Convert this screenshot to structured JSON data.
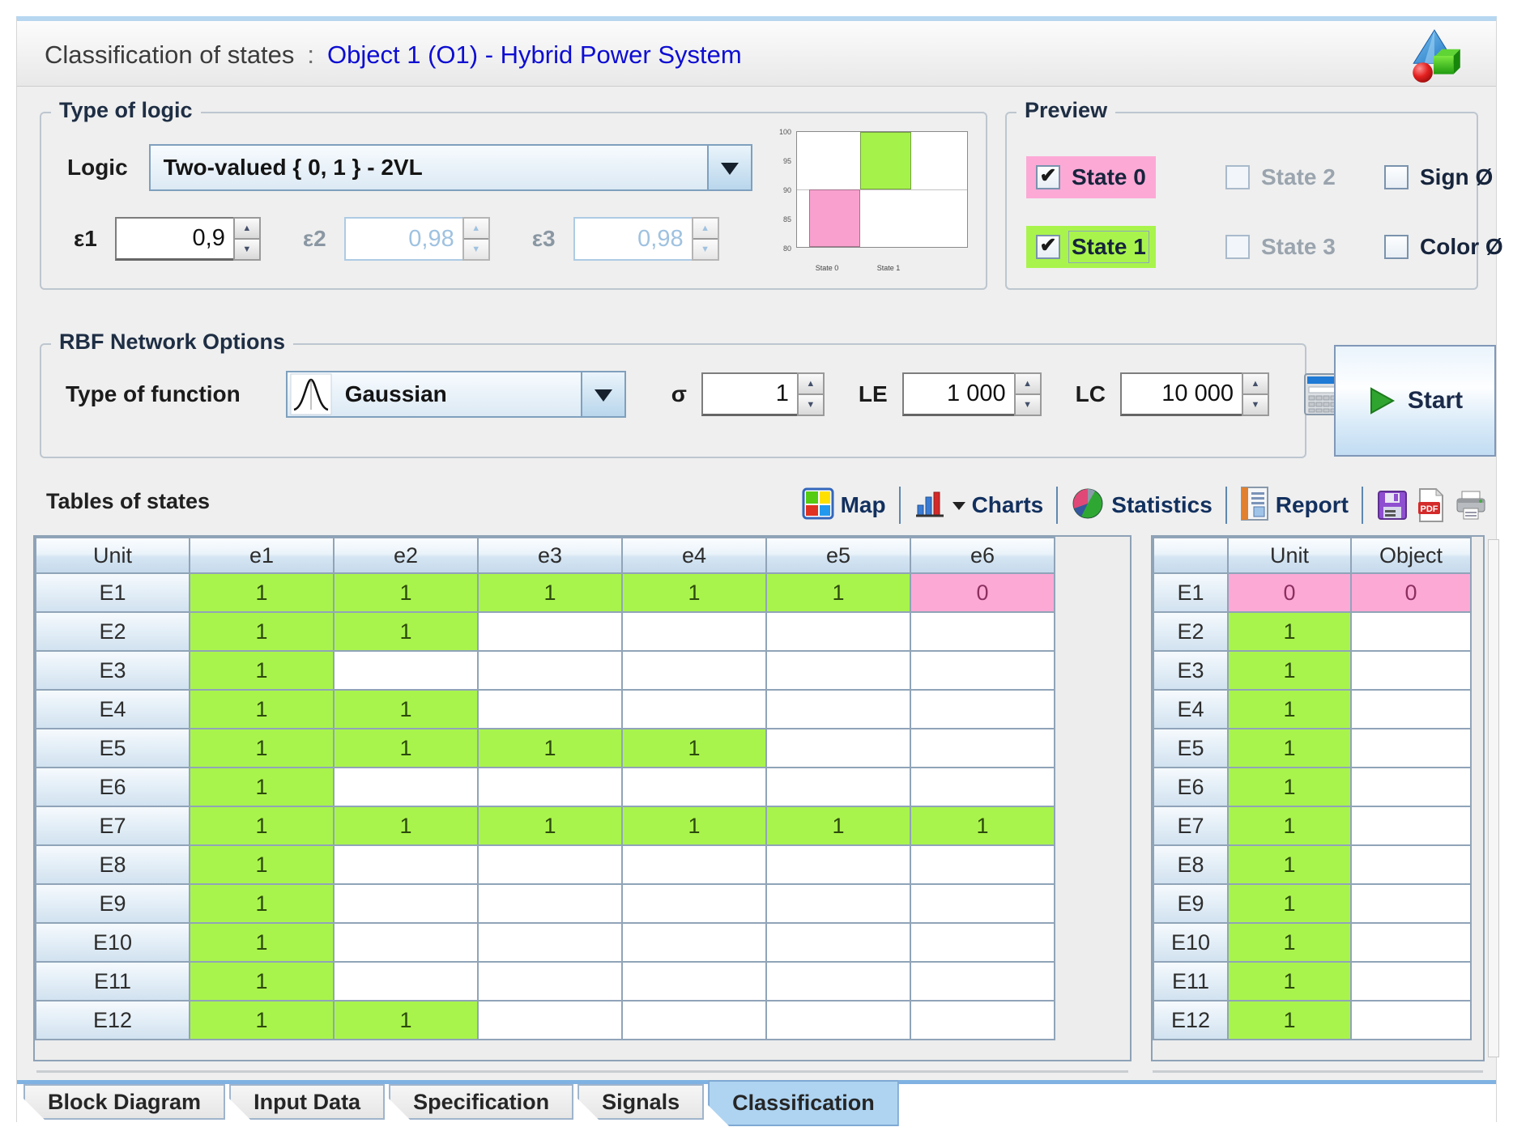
{
  "window": {
    "title_prefix": "Classification of states",
    "title_separator": ":",
    "title_object": "Object 1 (O1) -  Hybrid Power System"
  },
  "type_of_logic": {
    "legend": "Type of logic",
    "logic_label": "Logic",
    "logic_value": "Two-valued { 0, 1 } - 2VL",
    "epsilons": [
      {
        "label": "ε1",
        "value": "0,9",
        "enabled": true
      },
      {
        "label": "ε2",
        "value": "0,98",
        "enabled": false
      },
      {
        "label": "ε3",
        "value": "0,98",
        "enabled": false
      }
    ],
    "mini_chart": {
      "type": "bar",
      "title": "",
      "y_ticks": [
        "100",
        "95",
        "90",
        "85",
        "80"
      ],
      "ylim": [
        80,
        100
      ],
      "categories": [
        "State 0",
        "State 1"
      ],
      "series": [
        {
          "name": "State 0",
          "from": 80,
          "to": 90,
          "color": "#F9A0CE"
        },
        {
          "name": "State 1",
          "from": 90,
          "to": 100,
          "color": "#A5F24A"
        }
      ]
    }
  },
  "preview": {
    "legend": "Preview",
    "checkboxes": [
      {
        "label": "State 0",
        "checked": true,
        "enabled": true,
        "highlight": "#FCA9D6"
      },
      {
        "label": "State 2",
        "checked": false,
        "enabled": false,
        "highlight": ""
      },
      {
        "label": "Sign Ø",
        "checked": false,
        "enabled": true,
        "highlight": ""
      },
      {
        "label": "State 1",
        "checked": true,
        "enabled": true,
        "highlight": "#A9F44C"
      },
      {
        "label": "State 3",
        "checked": false,
        "enabled": false,
        "highlight": ""
      },
      {
        "label": "Color Ø",
        "checked": false,
        "enabled": true,
        "highlight": ""
      }
    ]
  },
  "rbf": {
    "legend": "RBF Network Options",
    "function_label": "Type of function",
    "function_value": "Gaussian",
    "sigma_label": "σ",
    "sigma_value": "1",
    "le_label": "LE",
    "le_value": "1 000",
    "lc_label": "LC",
    "lc_value": "10 000"
  },
  "start_button": {
    "label": "Start"
  },
  "tables": {
    "section_label": "Tables of states",
    "toolbar": {
      "map_label": "Map",
      "charts_label": "Charts",
      "statistics_label": "Statistics",
      "report_label": "Report"
    },
    "left": {
      "headers": [
        "Unit",
        "e1",
        "e2",
        "e3",
        "e4",
        "e5",
        "e6"
      ],
      "rows": [
        {
          "unit": "E1",
          "cells": [
            "1",
            "1",
            "1",
            "1",
            "1",
            "0"
          ]
        },
        {
          "unit": "E2",
          "cells": [
            "1",
            "1",
            "",
            "",
            "",
            ""
          ]
        },
        {
          "unit": "E3",
          "cells": [
            "1",
            "",
            "",
            "",
            "",
            ""
          ]
        },
        {
          "unit": "E4",
          "cells": [
            "1",
            "1",
            "",
            "",
            "",
            ""
          ]
        },
        {
          "unit": "E5",
          "cells": [
            "1",
            "1",
            "1",
            "1",
            "",
            ""
          ]
        },
        {
          "unit": "E6",
          "cells": [
            "1",
            "",
            "",
            "",
            "",
            ""
          ]
        },
        {
          "unit": "E7",
          "cells": [
            "1",
            "1",
            "1",
            "1",
            "1",
            "1"
          ]
        },
        {
          "unit": "E8",
          "cells": [
            "1",
            "",
            "",
            "",
            "",
            ""
          ]
        },
        {
          "unit": "E9",
          "cells": [
            "1",
            "",
            "",
            "",
            "",
            ""
          ]
        },
        {
          "unit": "E10",
          "cells": [
            "1",
            "",
            "",
            "",
            "",
            ""
          ]
        },
        {
          "unit": "E11",
          "cells": [
            "1",
            "",
            "",
            "",
            "",
            ""
          ]
        },
        {
          "unit": "E12",
          "cells": [
            "1",
            "1",
            "",
            "",
            "",
            ""
          ]
        }
      ]
    },
    "right": {
      "headers": [
        "",
        "Unit",
        "Object"
      ],
      "rows": [
        {
          "unit": "E1",
          "cells": [
            "0",
            "0"
          ]
        },
        {
          "unit": "E2",
          "cells": [
            "1",
            ""
          ]
        },
        {
          "unit": "E3",
          "cells": [
            "1",
            ""
          ]
        },
        {
          "unit": "E4",
          "cells": [
            "1",
            ""
          ]
        },
        {
          "unit": "E5",
          "cells": [
            "1",
            ""
          ]
        },
        {
          "unit": "E6",
          "cells": [
            "1",
            ""
          ]
        },
        {
          "unit": "E7",
          "cells": [
            "1",
            ""
          ]
        },
        {
          "unit": "E8",
          "cells": [
            "1",
            ""
          ]
        },
        {
          "unit": "E9",
          "cells": [
            "1",
            ""
          ]
        },
        {
          "unit": "E10",
          "cells": [
            "1",
            ""
          ]
        },
        {
          "unit": "E11",
          "cells": [
            "1",
            ""
          ]
        },
        {
          "unit": "E12",
          "cells": [
            "1",
            ""
          ]
        }
      ]
    }
  },
  "tabs": [
    {
      "label": "Block Diagram",
      "selected": false
    },
    {
      "label": "Input Data",
      "selected": false
    },
    {
      "label": "Specification",
      "selected": false
    },
    {
      "label": "Signals",
      "selected": false
    },
    {
      "label": "Classification",
      "selected": true
    }
  ],
  "colors": {
    "state0_pink": "#FCA9D6",
    "state1_green": "#A9F44C",
    "title_object_blue": "#0D0DD2",
    "table_grid": "#90A4B8",
    "tab_selected": "#AED4F1",
    "top_strip_blue": "#B7D7F1"
  }
}
